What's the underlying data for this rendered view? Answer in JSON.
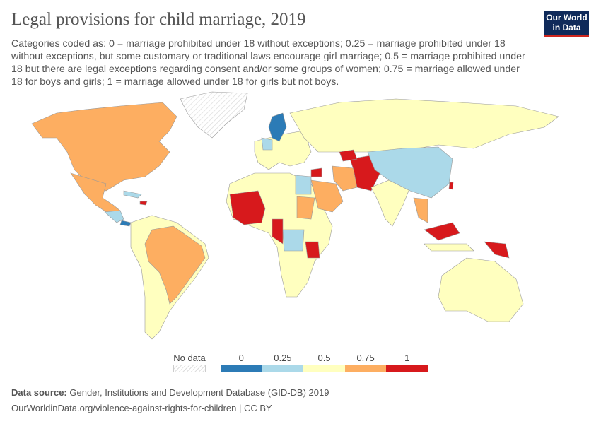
{
  "title": "Legal provisions for child marriage, 2019",
  "subtitle": "Categories coded as: 0 = marriage prohibited under 18 without exceptions; 0.25 = marriage prohibited under 18 without exceptions, but some customary or traditional laws encourage girl marriage; 0.5 = marriage prohibited under 18 but there are legal exceptions regarding consent and/or some groups of women; 0.75 = marriage allowed under 18 for boys and girls; 1 = marriage allowed under 18 for girls but not boys.",
  "logo": {
    "line1": "Our World",
    "line2": "in Data"
  },
  "legend": {
    "no_data_label": "No data",
    "bins": [
      {
        "label": "0",
        "color": "#2c7bb6"
      },
      {
        "label": "0.25",
        "color": "#abd9e9"
      },
      {
        "label": "0.5",
        "color": "#ffffbf"
      },
      {
        "label": "0.75",
        "color": "#fdae61"
      },
      {
        "label": "1",
        "color": "#d7191c"
      }
    ]
  },
  "footer": {
    "source_label": "Data source:",
    "source": "Gender, Institutions and Development Database (GID-DB) 2019",
    "url": "OurWorldinData.org/violence-against-rights-for-children | CC BY"
  }
}
